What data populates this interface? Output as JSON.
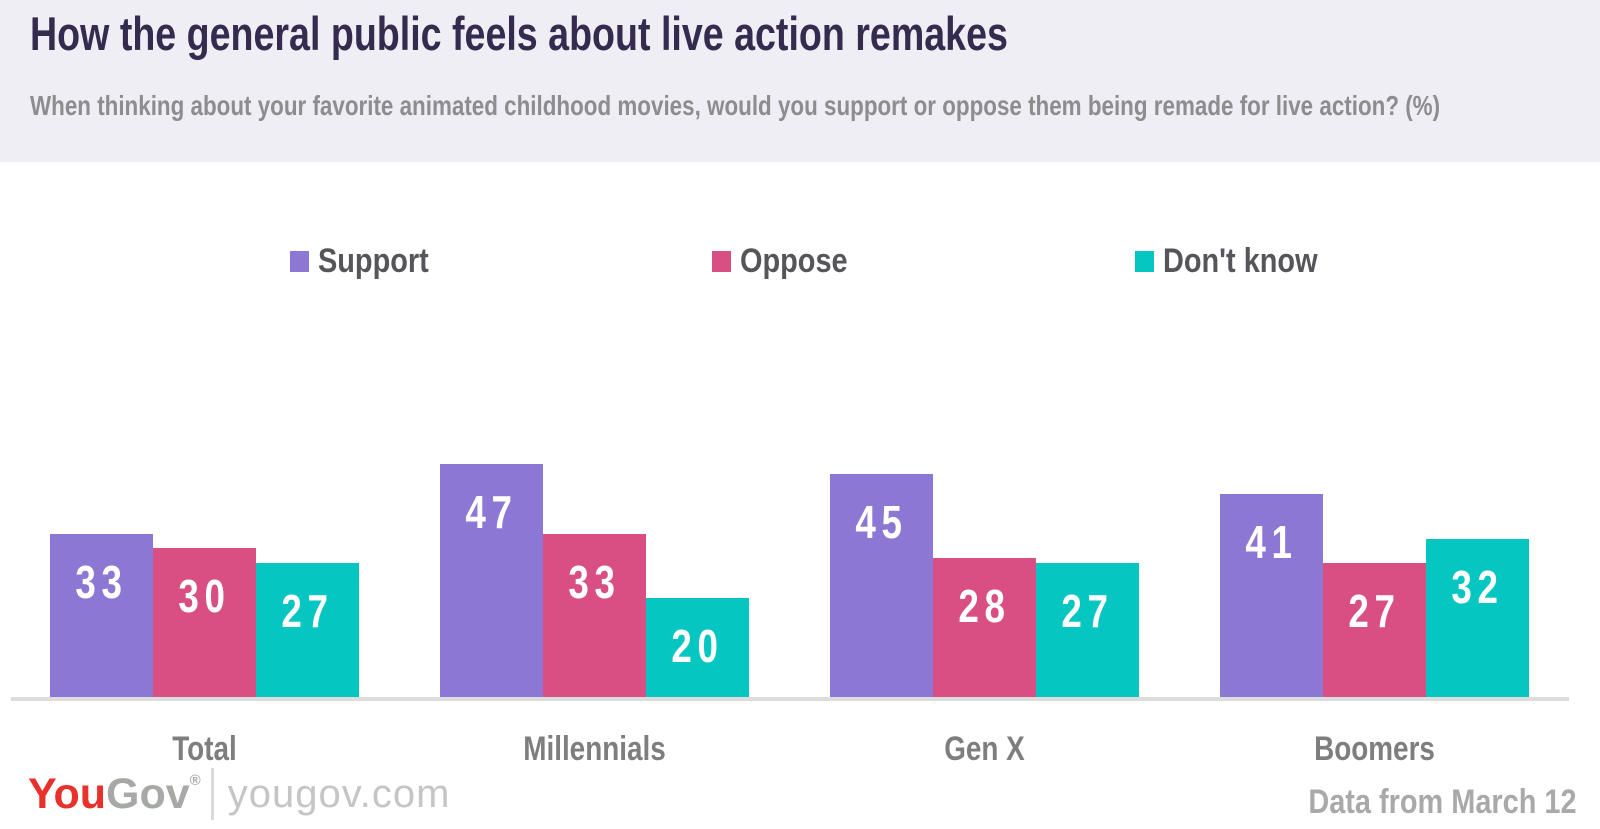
{
  "header": {
    "title": "How the general public feels about live action remakes",
    "subtitle": "When thinking about your favorite animated childhood movies, would you support or oppose them being remade for live action? (%)"
  },
  "chart_data": {
    "type": "bar",
    "categories": [
      "Total",
      "Millennials",
      "Gen X",
      "Boomers"
    ],
    "series": [
      {
        "name": "Support",
        "color": "#8c77d4",
        "values": [
          33,
          47,
          45,
          41
        ]
      },
      {
        "name": "Oppose",
        "color": "#d94f83",
        "values": [
          30,
          33,
          28,
          27
        ]
      },
      {
        "name": "Don't know",
        "color": "#06c6c2",
        "values": [
          27,
          20,
          27,
          32
        ]
      }
    ],
    "title": "How the general public feels about live action remakes",
    "xlabel": "",
    "ylabel": "",
    "value_unit": "%",
    "ylim": [
      0,
      50
    ],
    "grid": false,
    "legend_position": "top",
    "bar_labels": "inside-top"
  },
  "footer": {
    "logo": {
      "part1": "You",
      "part2": "Gov",
      "registered": "®",
      "site": "yougov.com"
    },
    "note": "Data from March 12"
  },
  "colors": {
    "header_bg": "#efeef4",
    "title": "#342b4e",
    "subtitle": "#8d8d8f",
    "axis_line": "#dcdcdc",
    "category_label": "#7e7e7e",
    "legend_text": "#56565a",
    "note_text": "#a9a9a9",
    "logo_red": "#e8312a",
    "logo_grey": "#a7a9a6",
    "site_grey": "#c5c5c5"
  }
}
